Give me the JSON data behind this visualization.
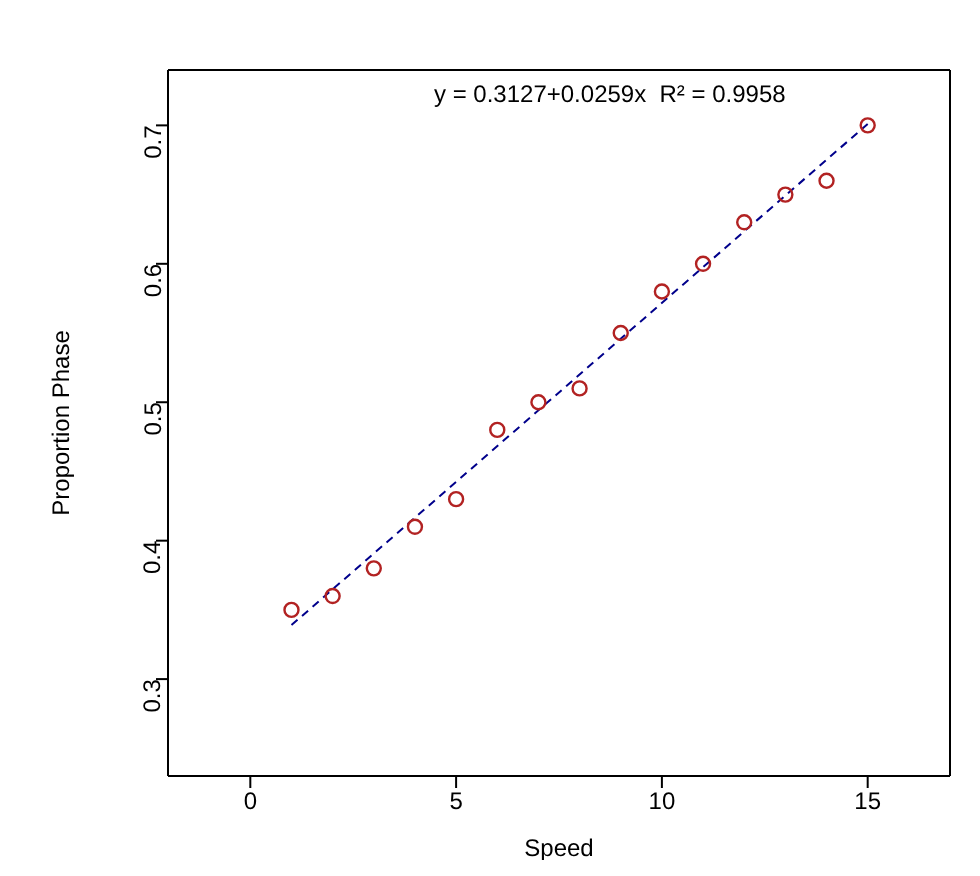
{
  "chart_data": {
    "type": "scatter",
    "xlabel": "Speed",
    "ylabel": "Proportion Phase",
    "x": [
      1,
      2,
      3,
      4,
      5,
      6,
      7,
      8,
      9,
      10,
      11,
      12,
      13,
      14,
      15
    ],
    "xlim": [
      -2,
      17
    ],
    "xticks": [
      0,
      5,
      10,
      15
    ],
    "ylim": [
      0.23,
      0.74
    ],
    "yticks": [
      0.3,
      0.4,
      0.5,
      0.6,
      0.7
    ],
    "marker": "circle",
    "legend": false,
    "annotations": [
      "y = 0.3127+0.0259x  R² = 0.9958"
    ],
    "series": [
      {
        "color": "#b22222",
        "values": [
          0.35,
          0.36,
          0.38,
          0.41,
          0.43,
          0.48,
          0.5,
          0.51,
          0.55,
          0.58,
          0.6,
          0.63,
          0.65,
          0.66,
          0.7
        ]
      },
      {
        "type": "line",
        "x": [
          1,
          15
        ],
        "values": [
          0.339,
          0.701
        ],
        "color": "#00008b",
        "line_style": "dashed",
        "marker": "none"
      }
    ]
  }
}
